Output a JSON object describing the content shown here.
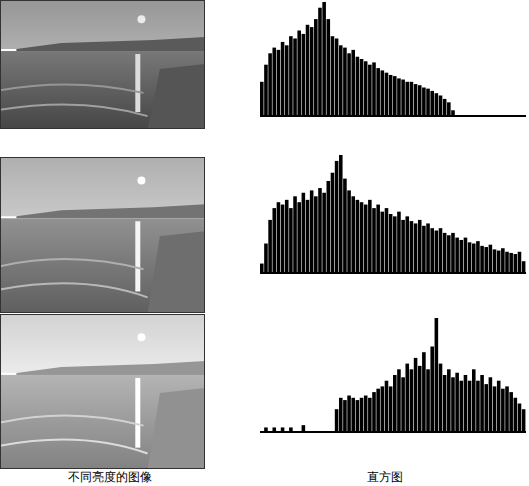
{
  "labels": {
    "images": "不同亮度的图像",
    "histograms": "直方图"
  },
  "chart_data": [
    {
      "type": "histogram",
      "color": "#000000",
      "tick_labels": false,
      "xlim": [
        0,
        256
      ],
      "ylim": [
        0,
        100
      ],
      "bins": [
        0,
        4,
        8,
        12,
        16,
        20,
        24,
        28,
        32,
        36,
        40,
        44,
        48,
        52,
        56,
        60,
        64,
        68,
        72,
        76,
        80,
        84,
        88,
        92,
        96,
        100,
        104,
        108,
        112,
        116,
        120,
        124,
        128,
        132,
        136,
        140,
        144,
        148,
        152,
        156,
        160,
        164,
        168,
        172,
        176,
        180,
        184,
        188,
        192,
        196,
        200,
        204,
        208,
        212,
        216,
        220,
        224,
        228,
        232,
        236,
        240,
        244,
        248,
        252,
        256
      ],
      "values": [
        30,
        45,
        55,
        60,
        58,
        65,
        62,
        70,
        68,
        75,
        72,
        80,
        78,
        85,
        95,
        100,
        85,
        70,
        68,
        62,
        60,
        55,
        58,
        52,
        50,
        48,
        45,
        47,
        42,
        40,
        38,
        36,
        35,
        33,
        32,
        30,
        30,
        28,
        27,
        25,
        24,
        22,
        20,
        18,
        15,
        12,
        5,
        0,
        0,
        0,
        0,
        0,
        0,
        0,
        0,
        0,
        0,
        0,
        0,
        0,
        0,
        0,
        0,
        0
      ]
    },
    {
      "type": "histogram",
      "color": "#000000",
      "tick_labels": false,
      "xlim": [
        0,
        256
      ],
      "ylim": [
        0,
        100
      ],
      "bins": [
        0,
        4,
        8,
        12,
        16,
        20,
        24,
        28,
        32,
        36,
        40,
        44,
        48,
        52,
        56,
        60,
        64,
        68,
        72,
        76,
        80,
        84,
        88,
        92,
        96,
        100,
        104,
        108,
        112,
        116,
        120,
        124,
        128,
        132,
        136,
        140,
        144,
        148,
        152,
        156,
        160,
        164,
        168,
        172,
        176,
        180,
        184,
        188,
        192,
        196,
        200,
        204,
        208,
        212,
        216,
        220,
        224,
        228,
        232,
        236,
        240,
        244,
        248,
        252,
        256
      ],
      "values": [
        8,
        25,
        45,
        55,
        60,
        58,
        62,
        55,
        65,
        60,
        68,
        62,
        70,
        65,
        72,
        68,
        78,
        85,
        95,
        100,
        80,
        70,
        65,
        62,
        60,
        58,
        62,
        55,
        58,
        52,
        55,
        50,
        48,
        52,
        45,
        48,
        44,
        42,
        45,
        40,
        42,
        38,
        36,
        38,
        34,
        32,
        34,
        30,
        28,
        30,
        26,
        25,
        27,
        23,
        22,
        24,
        20,
        19,
        21,
        18,
        17,
        16,
        18,
        10
      ]
    },
    {
      "type": "histogram",
      "color": "#000000",
      "tick_labels": false,
      "xlim": [
        0,
        256
      ],
      "ylim": [
        0,
        100
      ],
      "bins": [
        0,
        4,
        8,
        12,
        16,
        20,
        24,
        28,
        32,
        36,
        40,
        44,
        48,
        52,
        56,
        60,
        64,
        68,
        72,
        76,
        80,
        84,
        88,
        92,
        96,
        100,
        104,
        108,
        112,
        116,
        120,
        124,
        128,
        132,
        136,
        140,
        144,
        148,
        152,
        156,
        160,
        164,
        168,
        172,
        176,
        180,
        184,
        188,
        192,
        196,
        200,
        204,
        208,
        212,
        216,
        220,
        224,
        228,
        232,
        236,
        240,
        244,
        248,
        252,
        256
      ],
      "values": [
        0,
        4,
        0,
        4,
        0,
        4,
        0,
        4,
        0,
        0,
        6,
        0,
        0,
        0,
        0,
        0,
        0,
        0,
        20,
        30,
        28,
        32,
        30,
        28,
        30,
        32,
        30,
        35,
        38,
        40,
        45,
        40,
        50,
        55,
        48,
        60,
        55,
        65,
        58,
        70,
        55,
        75,
        100,
        60,
        50,
        55,
        48,
        52,
        45,
        50,
        45,
        55,
        45,
        50,
        42,
        48,
        40,
        45,
        38,
        40,
        35,
        30,
        25,
        20
      ]
    }
  ]
}
